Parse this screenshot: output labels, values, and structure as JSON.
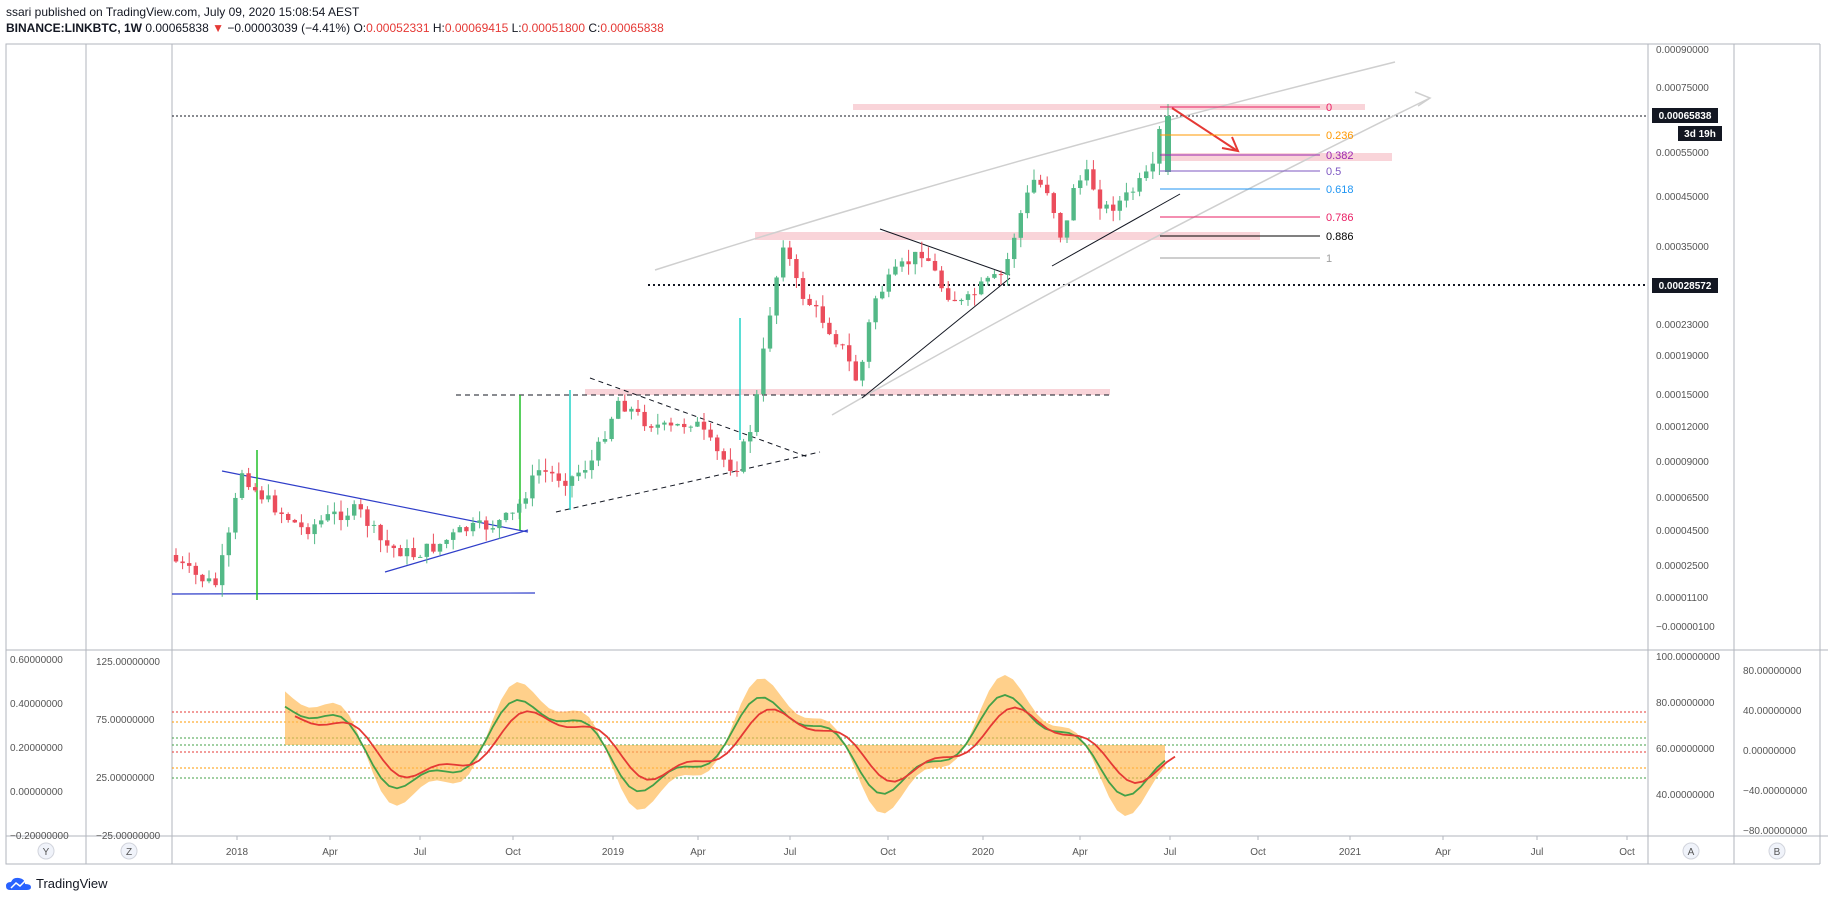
{
  "header": {
    "publisher_line": "ssari published on TradingView.com, July 09, 2020 15:08:54 AEST",
    "symbol": "BINANCE:LINKBTC, 1W",
    "last": "0.00065838",
    "change": "−0.00003039 (−4.41%)",
    "o_label": "O:",
    "o_value": "0.00052331",
    "h_label": "H:",
    "h_value": "0.00069415",
    "l_label": "L:",
    "l_value": "0.00051800",
    "c_label": "C:",
    "c_value": "0.00065838"
  },
  "price_axis": {
    "ticks": [
      "0.00090000",
      "0.00075000",
      "0.00065000",
      "0.00055000",
      "0.00045000",
      "0.00035000",
      "0.00023000",
      "0.00019000",
      "0.00015000",
      "0.00012000",
      "0.00009000",
      "0.00006500",
      "0.00004500",
      "0.00002500",
      "0.00001100",
      "−0.00000100"
    ],
    "current_price_label": "0.00065838",
    "countdown_label": "3d 19h",
    "level_label": "0.00028572"
  },
  "time_axis": {
    "ticks": [
      "2018",
      "Apr",
      "Jul",
      "Oct",
      "2019",
      "Apr",
      "Jul",
      "Oct",
      "2020",
      "Apr",
      "Jul",
      "Oct",
      "2021",
      "Apr",
      "Jul",
      "Oct"
    ]
  },
  "fib_levels": [
    {
      "label": "0",
      "color": "#e91e63"
    },
    {
      "label": "0.236",
      "color": "#ff9800"
    },
    {
      "label": "0.382",
      "color": "#9c27b0"
    },
    {
      "label": "0.5",
      "color": "#7e57c2"
    },
    {
      "label": "0.618",
      "color": "#2196f3"
    },
    {
      "label": "0.786",
      "color": "#e91e63"
    },
    {
      "label": "0.886",
      "color": "#000000"
    },
    {
      "label": "1",
      "color": "#9e9e9e"
    }
  ],
  "indicator": {
    "left_outer_ticks": [
      "0.60000000",
      "0.40000000",
      "0.20000000",
      "0.00000000",
      "−0.20000000"
    ],
    "left_inner_ticks": [
      "125.00000000",
      "75.00000000",
      "25.00000000",
      "−25.00000000"
    ],
    "right_inner_ticks": [
      "100.00000000",
      "80.00000000",
      "60.00000000",
      "40.00000000"
    ],
    "right_outer_ticks": [
      "80.00000000",
      "40.00000000",
      "0.00000000",
      "−40.00000000",
      "−80.00000000"
    ]
  },
  "corner_buttons": {
    "y": "Y",
    "z": "Z",
    "a": "A",
    "b": "B"
  },
  "footer": {
    "brand": "TradingView"
  },
  "chart_data": {
    "type": "candlestick",
    "title": "BINANCE:LINKBTC, 1W",
    "price_range": [
      -1e-06,
      0.0009
    ],
    "candles_note_unit": "BTC",
    "candles": [
      [
        "2017-11",
        3.8e-05,
        4.2e-05,
        2.8e-05,
        3e-05
      ],
      [
        "2017-12",
        3e-05,
        3.5e-05,
        1.8e-05,
        2.5e-05
      ],
      [
        "2018-01",
        2.5e-05,
        9e-05,
        2.2e-05,
        8.2e-05
      ],
      [
        "2018-02",
        8.2e-05,
        9.5e-05,
        5.5e-05,
        6e-05
      ],
      [
        "2018-04",
        6e-05,
        7.2e-05,
        4e-05,
        4.8e-05
      ],
      [
        "2018-06",
        4.8e-05,
        6.5e-05,
        4e-05,
        5.5e-05
      ],
      [
        "2018-08",
        5.5e-05,
        5.8e-05,
        3e-05,
        3.5e-05
      ],
      [
        "2018-10",
        3.5e-05,
        5e-05,
        3.2e-05,
        4.8e-05
      ],
      [
        "2018-11",
        4.8e-05,
        0.00012,
        4.5e-05,
        0.000105
      ],
      [
        "2019-01",
        0.000105,
        0.00015,
        9.5e-05,
        0.00013
      ],
      [
        "2019-03",
        0.00013,
        0.000135,
        8.5e-05,
        9e-05
      ],
      [
        "2019-05",
        9e-05,
        0.00039,
        8.8e-05,
        0.0003
      ],
      [
        "2019-07",
        0.0003,
        0.00033,
        0.0002,
        0.00022
      ],
      [
        "2019-09",
        0.00022,
        0.00024,
        0.00015,
        0.00016
      ],
      [
        "2019-10",
        0.00016,
        0.00034,
        0.000155,
        0.0003
      ],
      [
        "2019-12",
        0.0003,
        0.00032,
        0.00024,
        0.00026
      ],
      [
        "2020-02",
        0.00026,
        0.00056,
        0.000255,
        0.0005
      ],
      [
        "2020-03",
        0.0005,
        0.00054,
        0.00033,
        0.00038
      ],
      [
        "2020-05",
        0.00038,
        0.00048,
        0.00036,
        0.00042
      ],
      [
        "2020-07",
        0.000523,
        0.000694,
        0.000518,
        0.000658
      ]
    ]
  }
}
